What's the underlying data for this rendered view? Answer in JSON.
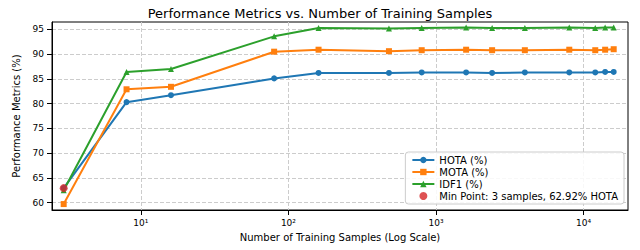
{
  "chart_data": {
    "type": "line",
    "title": "Performance Metrics vs. Number of Training Samples",
    "x_label": "Number of Training Samples (Log Scale)",
    "y_label": "Performance Metrics (%)",
    "x": [
      3,
      8,
      16,
      80,
      160,
      480,
      800,
      1600,
      2400,
      4000,
      8000,
      12000,
      14000,
      16000
    ],
    "series": [
      {
        "name": "HOTA (%)",
        "color": "#1f77b4",
        "marker": "circle",
        "values": [
          62.92,
          80.3,
          81.7,
          85.1,
          86.2,
          86.2,
          86.3,
          86.3,
          86.2,
          86.3,
          86.3,
          86.3,
          86.4,
          86.4
        ]
      },
      {
        "name": "MOTA (%)",
        "color": "#ff7f0e",
        "marker": "square",
        "values": [
          59.7,
          82.9,
          83.4,
          90.5,
          90.9,
          90.6,
          90.8,
          90.9,
          90.8,
          90.8,
          90.9,
          90.8,
          90.9,
          91.0
        ]
      },
      {
        "name": "IDF1 (%)",
        "color": "#2ca02c",
        "marker": "triangle",
        "values": [
          62.5,
          86.4,
          87.0,
          93.6,
          95.3,
          95.2,
          95.3,
          95.4,
          95.3,
          95.3,
          95.4,
          95.3,
          95.4,
          95.4
        ]
      },
      {
        "name": "Min Point: 3 samples, 62.92% HOTA",
        "type": "scatter",
        "color": "#d62728",
        "marker": "circle",
        "x": [
          3
        ],
        "values": [
          62.92
        ]
      }
    ],
    "log": "x",
    "xlim": [
      2.5,
      20000
    ],
    "xticks": [
      {
        "value": 10,
        "label": "10¹"
      },
      {
        "value": 100,
        "label": "10²"
      },
      {
        "value": 1000,
        "label": "10³"
      },
      {
        "value": 10000,
        "label": "10⁴"
      }
    ],
    "ylim": [
      58.5,
      96.5
    ],
    "yticks": [
      60,
      65,
      70,
      75,
      80,
      85,
      90,
      95
    ],
    "grid": true,
    "legend": "lower right"
  }
}
